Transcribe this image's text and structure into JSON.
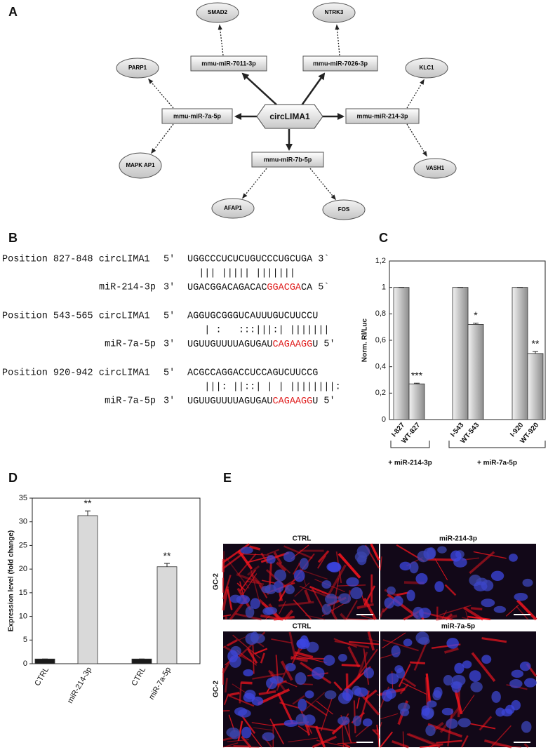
{
  "panel_labels": [
    "A",
    "B",
    "C",
    "D",
    "E"
  ],
  "network": {
    "center": "circLIMA1",
    "mirnas": [
      {
        "label": "mmu-miR-7011-3p",
        "targets": [
          "SMAD2"
        ]
      },
      {
        "label": "mmu-miR-7026-3p",
        "targets": [
          "NTRK3"
        ]
      },
      {
        "label": "mmu-miR-7a-5p",
        "targets": [
          "PARP1",
          "MAPK AP1"
        ]
      },
      {
        "label": "mmu-miR-214-3p",
        "targets": [
          "KLC1",
          "VASH1"
        ]
      },
      {
        "label": "mmu-miR-7b-5p",
        "targets": [
          "AFAP1",
          "FOS"
        ]
      }
    ]
  },
  "alignments": [
    {
      "position": "Position 827-848",
      "target": "circLIMA1",
      "primes": [
        "5'",
        "3`",
        "3'",
        "5`"
      ],
      "target_seq": "UGGCCCUCUCUGUCCCUGCUGA",
      "matches": "  ||| ||||| |||||||",
      "mirna": "miR-214-3p",
      "mirna_seq": [
        "UGACGGACAGACAC",
        "GGACGA",
        "CA"
      ]
    },
    {
      "position": "Position 543-565",
      "target": "circLIMA1",
      "primes": [
        "5'",
        "",
        "3'",
        "5'"
      ],
      "target_seq": "AGGUGCGGGUCAUUUGUCUUCCU",
      "matches": "   | :   :::|||:| |||||||",
      "mirna": "miR-7a-5p",
      "mirna_seq": [
        "UGUUGUUUUAGUGAU",
        "CAGAAGG",
        "U"
      ]
    },
    {
      "position": "Position 920-942",
      "target": "circLIMA1",
      "primes": [
        "5'",
        "",
        "3'",
        "5'"
      ],
      "target_seq": "ACGCCAGGACCUCCAGUCUUCCG",
      "matches": "   |||: ||::| | | ||||||||:",
      "mirna": "miR-7a-5p",
      "mirna_seq": [
        "UGUUGUUUUAGUGAU",
        "CAGAAGG",
        "U"
      ]
    }
  ],
  "chart_data": [
    {
      "type": "bar",
      "ylabel": "Norm. Rl/Luc",
      "categories": [
        "I-827",
        "WT-827",
        "I-543",
        "WT-543",
        "I-920",
        "WT-920"
      ],
      "values": [
        1,
        0.27,
        1,
        0.72,
        1,
        0.5
      ],
      "errors": [
        0,
        0.005,
        0,
        0.01,
        0,
        0.015
      ],
      "significance": [
        null,
        "***",
        null,
        "*",
        null,
        "**"
      ],
      "groups": [
        "+ miR-214-3p",
        "+ miR-7a-5p"
      ],
      "color": "#8c8c8c",
      "ylim": [
        0,
        1.2
      ],
      "yticks": [
        0,
        {
          "value": 0.2,
          "label": "0,2"
        },
        {
          "value": 0.4,
          "label": "0,4"
        },
        {
          "value": 0.6,
          "label": "0,6"
        },
        {
          "value": 0.8,
          "label": "0,8"
        },
        1,
        {
          "value": 1.2,
          "label": "1,2"
        }
      ]
    },
    {
      "type": "bar",
      "ylabel": "Expression level (fold change)",
      "categories": [
        "CTRL",
        "miR-214-3p",
        "CTRL",
        "miR-7a-5p"
      ],
      "values": [
        1,
        31.3,
        1,
        20.5
      ],
      "errors": [
        0,
        1.0,
        0,
        0.7
      ],
      "significance": [
        null,
        "**",
        null,
        "**"
      ],
      "colors": [
        "#1a1a1a",
        "#d9d9d9",
        "#1a1a1a",
        "#d9d9d9"
      ],
      "ylim": [
        0,
        35
      ],
      "yticks": [
        0,
        5,
        10,
        15,
        20,
        25,
        30,
        35
      ]
    }
  ],
  "images": {
    "row_labels": [
      "GC-2",
      "GC-2"
    ],
    "panels": [
      "CTRL",
      "miR-214-3p",
      "CTRL",
      "miR-7a-5p"
    ]
  }
}
